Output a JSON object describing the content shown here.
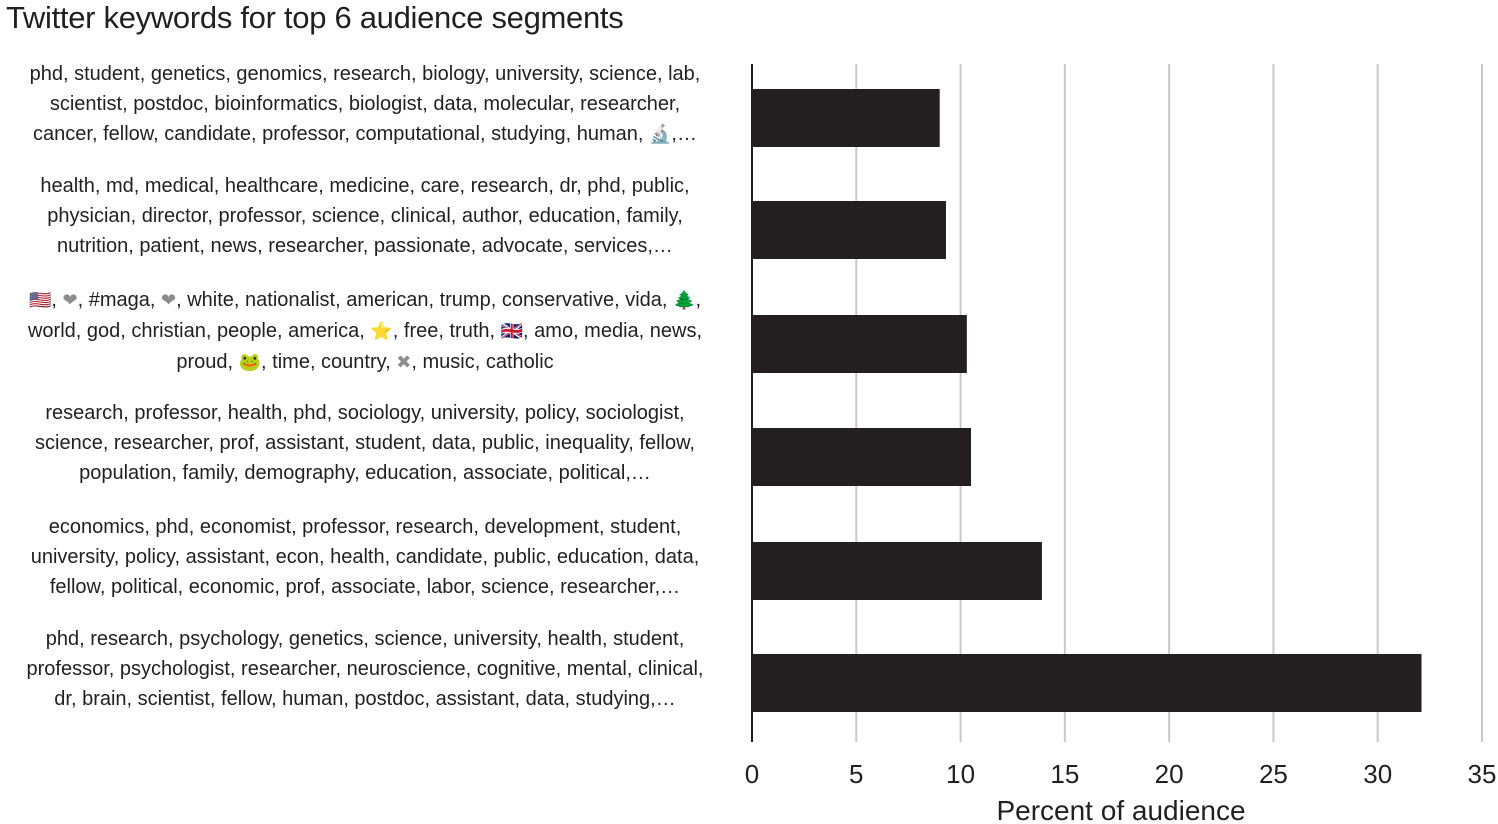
{
  "chart_data": {
    "type": "bar",
    "orientation": "horizontal",
    "title": "Twitter keywords for top 6 audience segments",
    "xlabel": "Percent of audience",
    "ylabel": "",
    "xlim": [
      0,
      35
    ],
    "xticks": [
      "0",
      "5",
      "10",
      "15",
      "20",
      "25",
      "30",
      "35"
    ],
    "grid": "vertical",
    "legend": "none",
    "bar_color": "#231f20",
    "grid_color": "#c8c8c8",
    "categories": [
      {
        "lines": [
          "phd, student, genetics, genomics, research, biology, university, science, lab,",
          "scientist, postdoc, bioinformatics, biologist, data, molecular, researcher,",
          "cancer, fellow, candidate, professor, computational, studying, human, 🔬,…"
        ]
      },
      {
        "lines": [
          "health, md, medical, healthcare, medicine, care, research, dr, phd, public,",
          "physician, director, professor, science, clinical, author, education, family,",
          "nutrition, patient, news, researcher, passionate, advocate, services,…"
        ]
      },
      {
        "lines": [
          "🇺🇸, ❤, #maga, ❤, white, nationalist, american, trump, conservative, vida, 🌲,",
          "world, god, christian, people, america, ⭐, free, truth, 🇬🇧, amo, media, news,",
          "proud, 🐸, time, country, ✖, music, catholic"
        ]
      },
      {
        "lines": [
          "research, professor, health, phd, sociology, university, policy, sociologist,",
          "science, researcher, prof, assistant, student, data, public, inequality, fellow,",
          "population, family, demography, education, associate, political,…"
        ]
      },
      {
        "lines": [
          "economics, phd, economist, professor, research, development, student,",
          "university, policy, assistant, econ, health, candidate, public, education, data,",
          "fellow, political, economic, prof, associate, labor, science, researcher,…"
        ]
      },
      {
        "lines": [
          "phd, research, psychology, genetics, science, university, health, student,",
          "professor, psychologist, researcher, neuroscience, cognitive, mental, clinical,",
          "dr, brain, scientist, fellow, human, postdoc, assistant, data, studying,…"
        ]
      }
    ],
    "values": [
      9.0,
      9.3,
      10.3,
      10.5,
      13.9,
      32.1
    ]
  }
}
